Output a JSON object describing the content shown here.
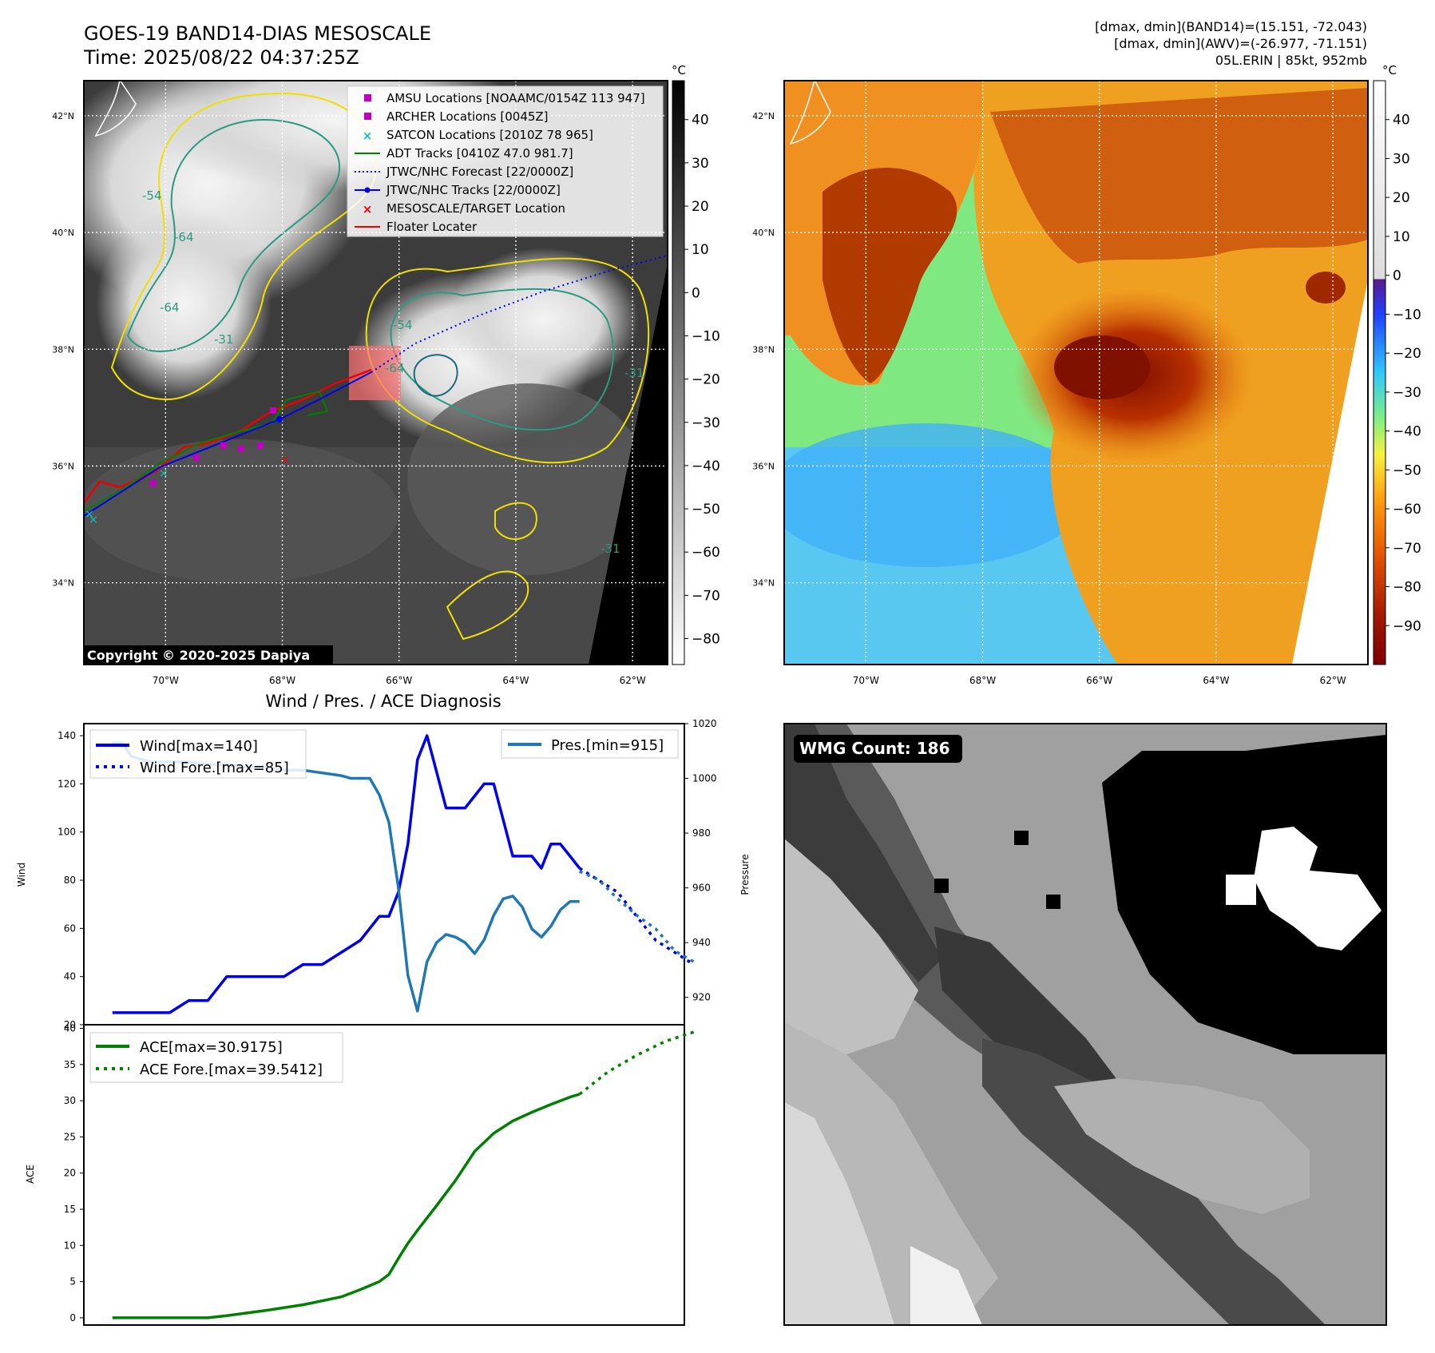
{
  "header": {
    "title_line1": "GOES-19 BAND14-DIAS MESOSCALE",
    "title_line2": "Time: 2025/08/22 04:37:25Z",
    "info_line1": "[dmax, dmin](BAND14)=(15.151, -72.043)",
    "info_line2": "[dmax, dmin](AWV)=(-26.977, -71.151)",
    "info_line3": "05L.ERIN | 85kt, 952mb"
  },
  "map_panels": {
    "lat_labels": [
      "42°N",
      "40°N",
      "38°N",
      "36°N",
      "34°N"
    ],
    "lat_values": [
      42,
      40,
      38,
      36,
      34
    ],
    "lon_labels": [
      "70°W",
      "68°W",
      "66°W",
      "64°W",
      "62°W"
    ],
    "lon_values": [
      -70,
      -68,
      -66,
      -64,
      -62
    ],
    "lat_range": [
      32.6,
      42.6
    ],
    "lon_range": [
      -71.4,
      -61.4
    ],
    "copyright": "Copyright © 2020-2025 Dapiya",
    "contour_labels": [
      "-54",
      "-64",
      "-64",
      "-31",
      "-54",
      "-64",
      "-31",
      "-31"
    ]
  },
  "legend": {
    "items": [
      {
        "label": "AMSU Locations [NOAAMC/0154Z 113 947]",
        "color": "#c000c0",
        "marker": "square"
      },
      {
        "label": "ARCHER Locations [0045Z]",
        "color": "#c000c0",
        "marker": "square"
      },
      {
        "label": "SATCON Locations [2010Z 78 965]",
        "color": "#10c0c0",
        "marker": "x"
      },
      {
        "label": "ADT Tracks [0410Z 47.0 981.7]",
        "color": "#008000",
        "marker": "line"
      },
      {
        "label": "JTWC/NHC Forecast [22/0000Z]",
        "color": "#0000ee",
        "marker": "dotted"
      },
      {
        "label": "JTWC/NHC Tracks [22/0000Z]",
        "color": "#0000ee",
        "marker": "line-dot"
      },
      {
        "label": "MESOSCALE/TARGET Location",
        "color": "#ee0000",
        "marker": "x"
      },
      {
        "label": "Floater Locater",
        "color": "#ee0000",
        "marker": "line"
      }
    ]
  },
  "colorbars": {
    "unit": "°C",
    "gray_ticks": [
      "40",
      "30",
      "20",
      "10",
      "0",
      "−10",
      "−20",
      "−30",
      "−40",
      "−50",
      "−60",
      "−70",
      "−80"
    ],
    "gray_range": [
      -86,
      49
    ],
    "color_ticks": [
      "40",
      "30",
      "20",
      "10",
      "0",
      "−10",
      "−20",
      "−30",
      "−40",
      "−50",
      "−60",
      "−70",
      "−80",
      "−90"
    ],
    "color_range": [
      -100,
      50
    ]
  },
  "wmg": {
    "label": "WMG Count: 186"
  },
  "chart_data": [
    {
      "type": "line",
      "title": "Wind / Pres. / ACE Diagnosis",
      "ylabel": "Wind",
      "y2label": "Pressure",
      "ylim": [
        20,
        145
      ],
      "y2lim": [
        910,
        1020
      ],
      "xlim": [
        -1.5,
        30
      ],
      "yticks": [
        "140",
        "120",
        "100",
        "80",
        "60",
        "40",
        "20"
      ],
      "y2ticks": [
        "1020",
        "1000",
        "980",
        "960",
        "940",
        "920"
      ],
      "legend_left": [
        "Wind[max=140]",
        "Wind Fore.[max=85]"
      ],
      "legend_right": [
        "Pres.[min=915]"
      ],
      "series": [
        {
          "name": "Wind[max=140]",
          "style": "solid",
          "color": "#0000ee",
          "axis": "left",
          "x": [
            0,
            1,
            2,
            3,
            4,
            5,
            6,
            7,
            8,
            9,
            10,
            11,
            12,
            13,
            13.5,
            14,
            14.5,
            15,
            15.5,
            16,
            16.5,
            17,
            17.5,
            18,
            18.5,
            19,
            19.5,
            20,
            20.5,
            21,
            21.5,
            22,
            22.5,
            23,
            23.5,
            24,
            24.5
          ],
          "y": [
            25,
            25,
            25,
            25,
            30,
            30,
            40,
            40,
            40,
            40,
            45,
            45,
            50,
            55,
            60,
            65,
            65,
            75,
            95,
            130,
            140,
            125,
            110,
            110,
            110,
            115,
            120,
            120,
            105,
            90,
            90,
            90,
            85,
            95,
            95,
            90,
            85
          ]
        },
        {
          "name": "Wind Fore.[max=85]",
          "style": "dotted",
          "color": "#0000ee",
          "axis": "left",
          "x": [
            24.5,
            25.5,
            26.5,
            27.5,
            28.5,
            29.5,
            30.5
          ],
          "y": [
            85,
            80,
            75,
            65,
            55,
            50,
            45
          ]
        },
        {
          "name": "Pres.[min=915]",
          "style": "solid",
          "color": "#1f77b4",
          "axis": "right",
          "x": [
            0,
            0.5,
            1,
            2,
            3,
            4,
            5,
            6,
            7,
            8,
            9,
            10,
            11,
            12,
            12.5,
            13,
            13.5,
            14,
            14.5,
            15,
            15.5,
            16,
            16.5,
            17,
            17.5,
            18,
            18.5,
            19,
            19.5,
            20,
            20.5,
            21,
            21.5,
            22,
            22.5,
            23,
            23.5,
            24,
            24.5
          ],
          "y": [
            1013,
            1013,
            1008,
            1006,
            1006,
            1006,
            1005,
            1005,
            1004,
            1004,
            1003,
            1003,
            1002,
            1001,
            1000,
            1000,
            1000,
            994,
            984,
            960,
            928,
            915,
            933,
            940,
            943,
            942,
            940,
            936,
            941,
            950,
            956,
            957,
            953,
            945,
            942,
            946,
            952,
            955,
            955
          ]
        },
        {
          "name": "Pres. Fore.",
          "style": "dotted",
          "color": "#1f77b4",
          "axis": "right",
          "x": [
            24.5,
            25.5,
            26.5,
            27.5,
            28.5,
            29.5,
            30.5
          ],
          "y": [
            966,
            963,
            956,
            950,
            945,
            937,
            933
          ]
        }
      ]
    },
    {
      "type": "line",
      "ylabel": "ACE",
      "ylim": [
        -1,
        40.5
      ],
      "xlim": [
        -1.5,
        30
      ],
      "yticks": [
        "40",
        "35",
        "30",
        "25",
        "20",
        "15",
        "10",
        "5",
        "0"
      ],
      "legend": [
        "ACE[max=30.9175]",
        "ACE Fore.[max=39.5412]"
      ],
      "series": [
        {
          "name": "ACE[max=30.9175]",
          "style": "solid",
          "color": "#008000",
          "x": [
            0,
            2,
            4,
            5,
            6,
            8,
            10,
            12,
            13,
            14,
            14.5,
            15,
            15.5,
            16,
            17,
            18,
            19,
            20,
            21,
            22,
            23,
            24,
            24.5
          ],
          "y": [
            0,
            0,
            0,
            0,
            0.3,
            1,
            1.8,
            2.9,
            3.9,
            5,
            6,
            8.2,
            10.3,
            12.1,
            15.5,
            19,
            23,
            25.5,
            27.2,
            28.4,
            29.5,
            30.5,
            30.9
          ]
        },
        {
          "name": "ACE Fore.[max=39.5412]",
          "style": "dotted",
          "color": "#008000",
          "x": [
            24.5,
            26,
            27.5,
            29,
            30.5
          ],
          "y": [
            30.9,
            34,
            36.3,
            38.2,
            39.5
          ]
        }
      ]
    }
  ]
}
